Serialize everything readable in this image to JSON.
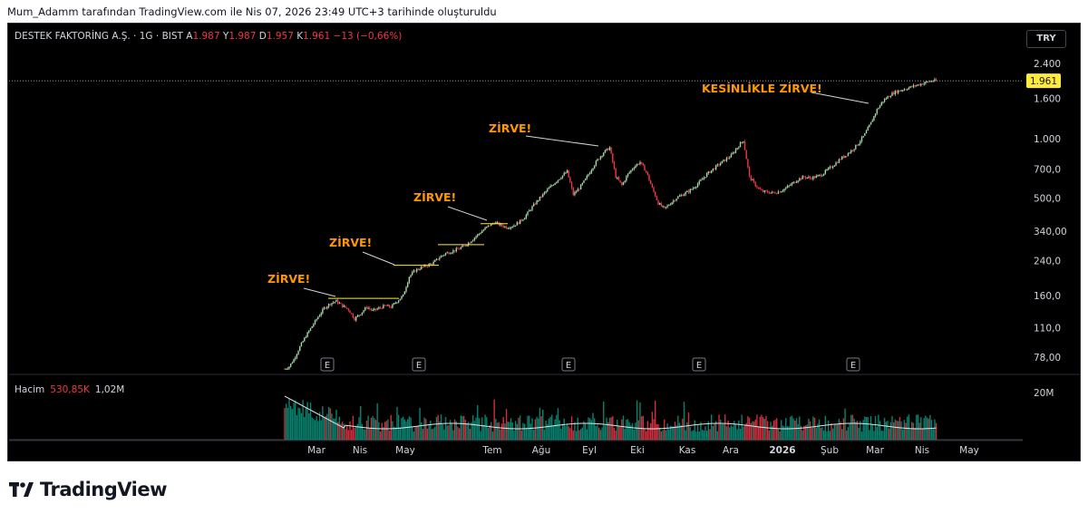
{
  "caption": "Mum_Adamm tarafından TradingView.com ile Nis 07, 2026 23:49 UTC+3 tarihinde oluşturuldu",
  "header": {
    "symbol": "DESTEK FAKTORİNG A.Ş. · 1G · BIST",
    "o_label": "A",
    "o_value": "1.987",
    "h_label": "Y",
    "h_value": "1.987",
    "l_label": "D",
    "l_value": "1.957",
    "c_label": "K",
    "c_value": "1.961",
    "change": "−13 (−0,66%)"
  },
  "currency": "TRY",
  "volume_header": {
    "label": "Hacim",
    "value1": "530,85K",
    "value2": "1,02M"
  },
  "brand": "TradingView",
  "colors": {
    "up": "#089981",
    "up_light": "#a5d6a7",
    "down": "#f23645",
    "annotation": "#ff9800",
    "ma": "#e0e3eb"
  },
  "chart_data": {
    "type": "candlestick",
    "y_scale": "log",
    "currency": "TRY",
    "last_price": "1.961",
    "price_ticks": [
      "2.400",
      "1.600",
      "1.000",
      "700,0",
      "500,0",
      "340,00",
      "240,0",
      "160,0",
      "110,0",
      "78,00"
    ],
    "price_tick_values": [
      2400,
      1600,
      1000,
      700,
      500,
      340,
      240,
      160,
      110,
      78
    ],
    "volume_tick": "20M",
    "x_ticks": [
      "Mar",
      "Nis",
      "May",
      "Tem",
      "Ağu",
      "Eyl",
      "Eki",
      "Kas",
      "Ara",
      "2026",
      "Şub",
      "Mar",
      "Nis",
      "May"
    ],
    "earnings_markers": [
      "E",
      "E",
      "E",
      "E",
      "E"
    ],
    "annotations": [
      "ZİRVE!",
      "ZİRVE!",
      "ZİRVE!",
      "ZİRVE!",
      "KESİNLİKLE ZİRVE!"
    ],
    "price_path": [
      [
        0,
        68
      ],
      [
        3,
        70
      ],
      [
        6,
        76
      ],
      [
        10,
        88
      ],
      [
        14,
        100
      ],
      [
        18,
        112
      ],
      [
        22,
        125
      ],
      [
        26,
        138
      ],
      [
        30,
        146
      ],
      [
        34,
        150
      ],
      [
        38,
        142
      ],
      [
        42,
        136
      ],
      [
        46,
        122
      ],
      [
        50,
        130
      ],
      [
        54,
        140
      ],
      [
        58,
        134
      ],
      [
        62,
        138
      ],
      [
        66,
        142
      ],
      [
        70,
        140
      ],
      [
        74,
        150
      ],
      [
        78,
        160
      ],
      [
        82,
        200
      ],
      [
        86,
        215
      ],
      [
        90,
        222
      ],
      [
        94,
        228
      ],
      [
        98,
        235
      ],
      [
        102,
        250
      ],
      [
        106,
        262
      ],
      [
        110,
        268
      ],
      [
        114,
        275
      ],
      [
        118,
        285
      ],
      [
        122,
        300
      ],
      [
        126,
        320
      ],
      [
        130,
        340
      ],
      [
        134,
        360
      ],
      [
        138,
        375
      ],
      [
        142,
        365
      ],
      [
        146,
        355
      ],
      [
        150,
        360
      ],
      [
        154,
        375
      ],
      [
        158,
        400
      ],
      [
        162,
        440
      ],
      [
        166,
        480
      ],
      [
        170,
        520
      ],
      [
        174,
        560
      ],
      [
        178,
        600
      ],
      [
        182,
        640
      ],
      [
        186,
        680
      ],
      [
        190,
        520
      ],
      [
        194,
        560
      ],
      [
        198,
        620
      ],
      [
        202,
        700
      ],
      [
        206,
        780
      ],
      [
        210,
        850
      ],
      [
        214,
        900
      ],
      [
        218,
        640
      ],
      [
        222,
        580
      ],
      [
        226,
        660
      ],
      [
        230,
        720
      ],
      [
        234,
        760
      ],
      [
        238,
        680
      ],
      [
        242,
        560
      ],
      [
        246,
        470
      ],
      [
        250,
        440
      ],
      [
        254,
        470
      ],
      [
        258,
        500
      ],
      [
        262,
        520
      ],
      [
        266,
        540
      ],
      [
        270,
        570
      ],
      [
        274,
        610
      ],
      [
        278,
        660
      ],
      [
        282,
        700
      ],
      [
        286,
        740
      ],
      [
        290,
        780
      ],
      [
        294,
        820
      ],
      [
        298,
        900
      ],
      [
        302,
        980
      ],
      [
        306,
        640
      ],
      [
        310,
        580
      ],
      [
        314,
        540
      ],
      [
        318,
        535
      ],
      [
        322,
        530
      ],
      [
        326,
        540
      ],
      [
        330,
        560
      ],
      [
        334,
        590
      ],
      [
        338,
        620
      ],
      [
        342,
        640
      ],
      [
        346,
        630
      ],
      [
        350,
        640
      ],
      [
        354,
        660
      ],
      [
        358,
        700
      ],
      [
        362,
        740
      ],
      [
        366,
        790
      ],
      [
        370,
        830
      ],
      [
        374,
        880
      ],
      [
        378,
        950
      ],
      [
        382,
        1050
      ],
      [
        386,
        1200
      ],
      [
        390,
        1400
      ],
      [
        394,
        1550
      ],
      [
        398,
        1650
      ],
      [
        402,
        1720
      ],
      [
        406,
        1760
      ],
      [
        410,
        1800
      ],
      [
        414,
        1840
      ],
      [
        418,
        1880
      ],
      [
        422,
        1920
      ],
      [
        426,
        1961
      ]
    ]
  }
}
